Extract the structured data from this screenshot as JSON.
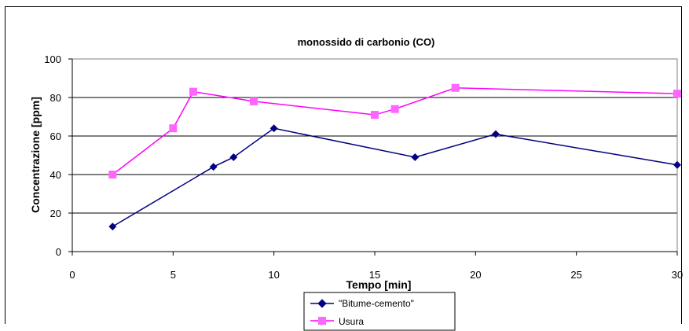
{
  "chart_data": {
    "type": "line",
    "title": "monossido di carbonio (CO)",
    "xlabel": "Tempo [min]",
    "ylabel": "Concentrazione [ppm]",
    "xlim": [
      0,
      30
    ],
    "ylim": [
      0,
      100
    ],
    "xticks": [
      0,
      5,
      10,
      15,
      20,
      25,
      30
    ],
    "yticks": [
      0,
      20,
      40,
      60,
      80,
      100
    ],
    "grid": "horizontal",
    "legend_position": "bottom",
    "series": [
      {
        "name": "\"Bitume-cemento\"",
        "color": "#000080",
        "marker": "diamond",
        "x": [
          2,
          7,
          8,
          10,
          17,
          21,
          30
        ],
        "y": [
          13,
          44,
          49,
          64,
          49,
          61,
          45
        ]
      },
      {
        "name": "Usura",
        "color": "#ff00ff",
        "marker": "square",
        "x": [
          2,
          5,
          6,
          9,
          15,
          16,
          19,
          30
        ],
        "y": [
          40,
          64,
          83,
          78,
          71,
          74,
          85,
          82
        ]
      }
    ]
  }
}
